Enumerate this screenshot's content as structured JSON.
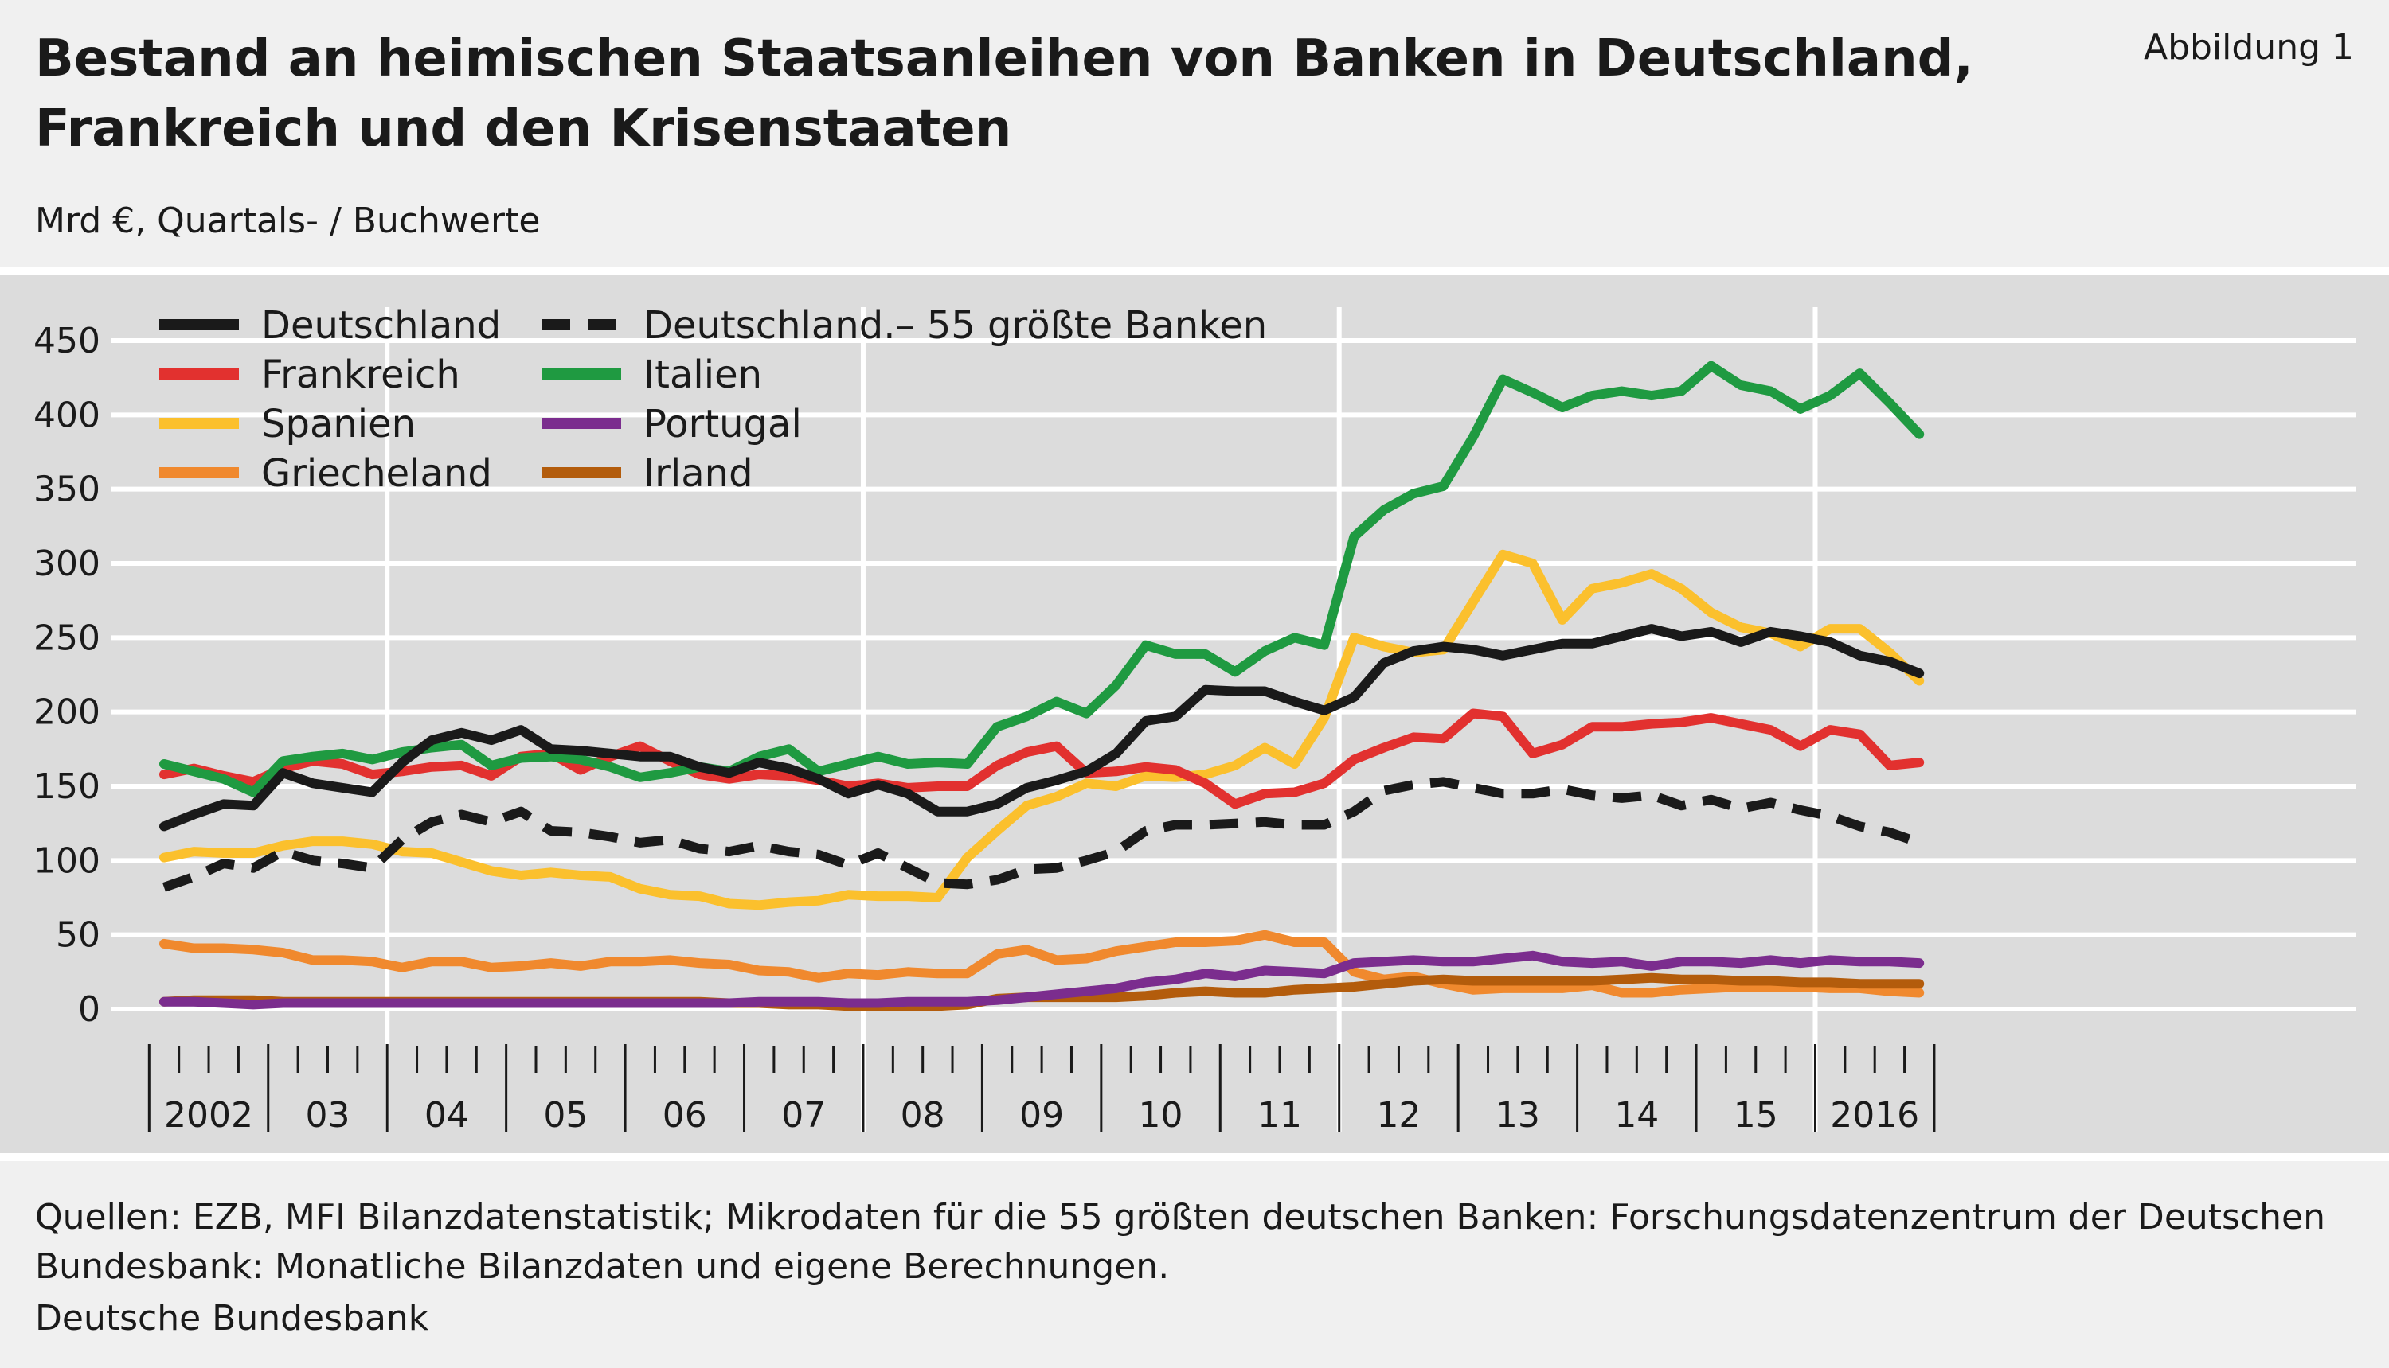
{
  "header": {
    "title_line1": "Bestand an heimischen Staatsanleihen von Banken in Deutschland,",
    "title_line2": "Frankreich und den Krisenstaaten",
    "figure_label": "Abbildung 1",
    "subtitle": "Mrd €, Quartals- / Buchwerte"
  },
  "footer": {
    "sources": "Quellen: EZB, MFI Bilanzdatenstatistik; Mikrodaten für die 55 größten deutschen Banken: Forschungsdatenzentrum der Deutschen Bundesbank: Monatliche Bilanzdaten und eigene Berechnungen.",
    "publisher": "Deutsche Bundesbank"
  },
  "colors": {
    "Deutschland": "#1a1a1a",
    "Frankreich": "#e2312f",
    "Spanien": "#fbc02d",
    "Griecheland": "#f0892e",
    "Italien": "#1f9a41",
    "Portugal": "#7b2d8e",
    "Irland": "#b35c0c",
    "panel_background": "#dcdcdc",
    "gridline": "#ffffff"
  },
  "chart_data": {
    "type": "line",
    "title": "Bestand an heimischen Staatsanleihen von Banken in Deutschland, Frankreich und den Krisenstaaten",
    "ylabel": "Mrd €, Quartals- / Buchwerte",
    "ylim": [
      0,
      450
    ],
    "yticks": [
      0,
      50,
      100,
      150,
      200,
      250,
      300,
      350,
      400,
      450
    ],
    "grid": true,
    "legend_position": "top-left",
    "x_start": "2002-Q1",
    "x_labels": [
      "2002",
      "03",
      "04",
      "05",
      "06",
      "07",
      "08",
      "09",
      "10",
      "11",
      "12",
      "13",
      "14",
      "15",
      "2016"
    ],
    "series": [
      {
        "name": "Deutschland",
        "style": "solid",
        "values": [
          123,
          131,
          138,
          137,
          159,
          152,
          149,
          146,
          166,
          181,
          186,
          181,
          188,
          175,
          174,
          172,
          170,
          170,
          163,
          159,
          166,
          162,
          155,
          145,
          151,
          145,
          133,
          133,
          138,
          149,
          154,
          160,
          172,
          194,
          197,
          215,
          214,
          214,
          207,
          201,
          210,
          233,
          241,
          244,
          242,
          238,
          242,
          246,
          246,
          251,
          256,
          251,
          254,
          247,
          254,
          251,
          247,
          238,
          234,
          226
        ]
      },
      {
        "name": "Deutschland.– 55 größte Banken",
        "style": "dashed",
        "values": [
          82,
          89,
          98,
          95,
          106,
          100,
          98,
          95,
          114,
          126,
          131,
          126,
          133,
          120,
          119,
          116,
          112,
          114,
          108,
          106,
          110,
          106,
          104,
          97,
          105,
          95,
          85,
          84,
          87,
          94,
          95,
          100,
          106,
          120,
          124,
          124,
          125,
          126,
          124,
          124,
          133,
          147,
          151,
          153,
          149,
          145,
          145,
          148,
          144,
          142,
          144,
          137,
          141,
          135,
          139,
          134,
          130,
          123,
          119,
          112
        ]
      },
      {
        "name": "Frankreich",
        "style": "solid",
        "values": [
          158,
          162,
          157,
          153,
          162,
          167,
          165,
          158,
          160,
          163,
          164,
          157,
          170,
          172,
          161,
          170,
          177,
          167,
          158,
          155,
          158,
          157,
          154,
          150,
          152,
          149,
          150,
          150,
          164,
          173,
          177,
          159,
          160,
          163,
          161,
          152,
          138,
          145,
          146,
          152,
          168,
          176,
          183,
          182,
          199,
          197,
          172,
          178,
          190,
          190,
          192,
          193,
          196,
          192,
          188,
          177,
          188,
          185,
          164,
          166
        ]
      },
      {
        "name": "Italien",
        "style": "solid",
        "values": [
          165,
          160,
          155,
          146,
          167,
          170,
          172,
          168,
          173,
          176,
          178,
          164,
          169,
          170,
          168,
          163,
          156,
          159,
          163,
          160,
          170,
          175,
          160,
          165,
          170,
          165,
          166,
          165,
          190,
          197,
          207,
          199,
          218,
          245,
          239,
          239,
          227,
          241,
          250,
          245,
          318,
          336,
          347,
          352,
          385,
          424,
          415,
          405,
          413,
          416,
          413,
          416,
          433,
          420,
          416,
          404,
          413,
          428,
          408,
          387
        ]
      },
      {
        "name": "Spanien",
        "style": "solid",
        "values": [
          102,
          106,
          105,
          105,
          110,
          113,
          113,
          111,
          106,
          105,
          99,
          93,
          90,
          92,
          90,
          89,
          81,
          77,
          76,
          71,
          70,
          72,
          73,
          77,
          76,
          76,
          75,
          102,
          120,
          137,
          143,
          152,
          150,
          157,
          156,
          158,
          164,
          176,
          165,
          196,
          250,
          244,
          240,
          242,
          274,
          306,
          300,
          262,
          283,
          287,
          293,
          283,
          267,
          257,
          253,
          244,
          256,
          256,
          240,
          221
        ]
      },
      {
        "name": "Portugal",
        "style": "solid",
        "values": [
          5,
          5,
          4,
          3,
          4,
          4,
          4,
          4,
          4,
          4,
          4,
          4,
          4,
          4,
          4,
          4,
          4,
          4,
          4,
          4,
          5,
          5,
          5,
          4,
          4,
          5,
          5,
          5,
          6,
          8,
          10,
          12,
          14,
          18,
          20,
          24,
          22,
          26,
          25,
          24,
          31,
          32,
          33,
          32,
          32,
          34,
          36,
          32,
          31,
          32,
          29,
          32,
          32,
          31,
          33,
          31,
          33,
          32,
          32,
          31
        ]
      },
      {
        "name": "Griecheland",
        "style": "solid",
        "values": [
          44,
          41,
          41,
          40,
          38,
          33,
          33,
          32,
          28,
          32,
          32,
          28,
          29,
          31,
          29,
          32,
          32,
          33,
          31,
          30,
          26,
          25,
          21,
          24,
          23,
          25,
          24,
          24,
          37,
          40,
          33,
          34,
          39,
          42,
          45,
          45,
          46,
          50,
          45,
          45,
          25,
          20,
          22,
          17,
          13,
          14,
          14,
          14,
          16,
          11,
          11,
          13,
          14,
          15,
          15,
          15,
          14,
          14,
          12,
          11
        ]
      },
      {
        "name": "Irland",
        "style": "solid",
        "values": [
          5,
          6,
          6,
          6,
          5,
          5,
          5,
          5,
          5,
          5,
          5,
          5,
          5,
          5,
          5,
          5,
          5,
          5,
          5,
          4,
          4,
          3,
          3,
          2,
          2,
          2,
          2,
          3,
          7,
          8,
          8,
          8,
          8,
          9,
          11,
          12,
          11,
          11,
          13,
          14,
          15,
          17,
          19,
          20,
          19,
          19,
          19,
          19,
          19,
          20,
          21,
          20,
          20,
          19,
          19,
          18,
          18,
          17,
          17,
          17
        ]
      }
    ]
  }
}
